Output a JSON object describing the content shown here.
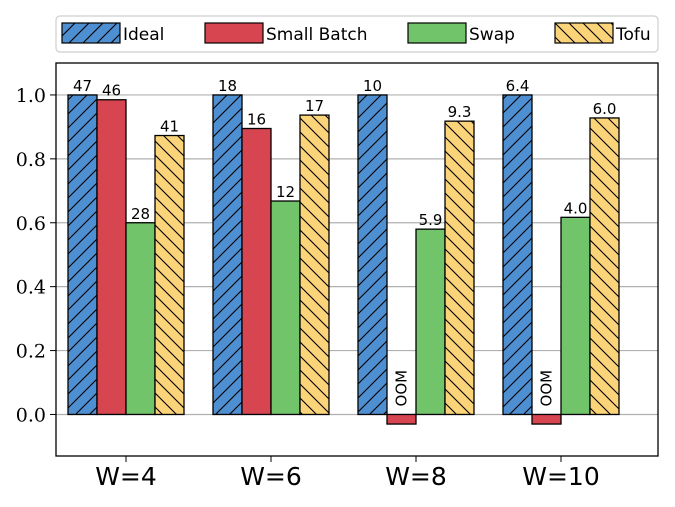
{
  "chart_data": {
    "type": "bar",
    "title": "",
    "xlabel": "",
    "ylabel": "",
    "categories": [
      "W=4",
      "W=6",
      "W=8",
      "W=10"
    ],
    "ylim": [
      -0.13,
      1.1
    ],
    "yticks": [
      "0.0",
      "0.2",
      "0.4",
      "0.6",
      "0.8",
      "1.0"
    ],
    "grid": "horizontal",
    "legend_position": "top",
    "series": [
      {
        "name": "Ideal",
        "color": "#4e8fd1",
        "hatch": "forward-diagonal",
        "values": [
          1.0,
          1.0,
          1.0,
          1.0
        ],
        "labels": [
          "47",
          "18",
          "10",
          "6.4"
        ]
      },
      {
        "name": "Small Batch",
        "color": "#d64550",
        "hatch": "none",
        "values": [
          0.985,
          0.895,
          -0.03,
          -0.03
        ],
        "labels": [
          "46",
          "16",
          "OOM",
          "OOM"
        ]
      },
      {
        "name": "Swap",
        "color": "#72c46a",
        "hatch": "none",
        "values": [
          0.6,
          0.668,
          0.58,
          0.617
        ],
        "labels": [
          "28",
          "12",
          "5.9",
          "4.0"
        ]
      },
      {
        "name": "Tofu",
        "color": "#fbd47a",
        "hatch": "back-diagonal",
        "values": [
          0.873,
          0.937,
          0.918,
          0.928
        ],
        "labels": [
          "41",
          "17",
          "9.3",
          "6.0"
        ]
      }
    ]
  }
}
